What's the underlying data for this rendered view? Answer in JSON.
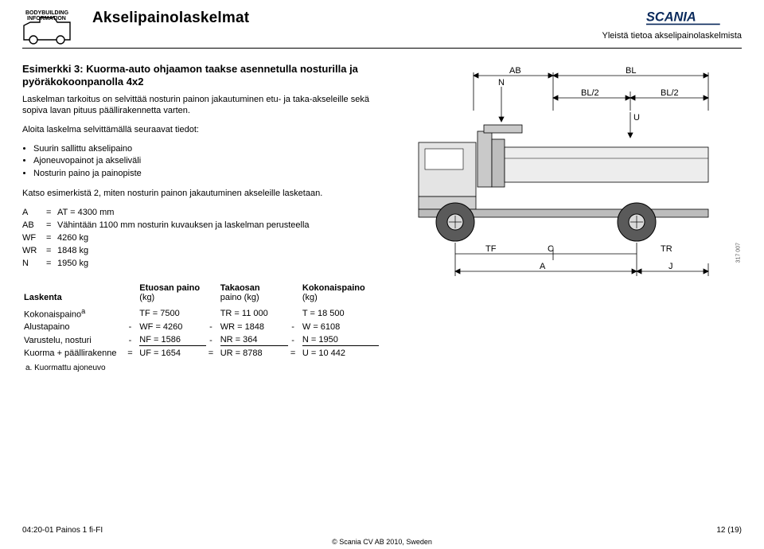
{
  "header": {
    "logo_text_top": "BODYBUILDING",
    "logo_text_bottom": "INFORMATION",
    "title": "Akselipainolaskelmat",
    "brand": "SCANIA",
    "subtitle": "Yleistä tietoa akselipainolaskelmista"
  },
  "left": {
    "example_title": "Esimerkki 3: Kuorma-auto ohjaamon taakse asennetulla nosturilla ja pyöräkokoonpanolla 4x2",
    "intro": "Laskelman tarkoitus on selvittää nosturin painon jakautuminen etu- ja taka-akseleille sekä sopiva lavan pituus päällirakennetta varten.",
    "start": "Aloita laskelma selvittämällä seuraavat tiedot:",
    "bullets": [
      "Suurin sallittu akselipaino",
      "Ajoneuvopainot ja akseliväli",
      "Nosturin paino ja painopiste"
    ],
    "see": "Katso esimerkistä 2, miten nosturin painon jakautuminen akseleille lasketaan.",
    "defs": [
      {
        "k": "A",
        "v": "AT = 4300 mm"
      },
      {
        "k": "AB",
        "v": "Vähintään 1100 mm nosturin kuvauksen ja laskelman perusteella"
      },
      {
        "k": "WF",
        "v": "4260 kg"
      },
      {
        "k": "WR",
        "v": "1848 kg"
      },
      {
        "k": "N",
        "v": "1950 kg"
      }
    ]
  },
  "figure": {
    "labels": {
      "AB": "AB",
      "BL": "BL",
      "N": "N",
      "BL2": "BL/2",
      "U": "U",
      "TF": "TF",
      "C": "C",
      "TR": "TR",
      "A": "A",
      "J": "J"
    },
    "side_note": "317 007",
    "colors": {
      "line": "#000000",
      "truck": "#b9b9b9",
      "wheel": "#5a5a5a"
    }
  },
  "calc": {
    "head": {
      "c0": "Laskenta",
      "c1": "Etuosan paino",
      "c1s": "(kg)",
      "c2": "Takaosan",
      "c2s": "paino (kg)",
      "c3": "Kokonaispaino",
      "c3s": "(kg)"
    },
    "rows": [
      {
        "label": "Kokonaispaino",
        "sup": "a",
        "op1": "",
        "v1": "TF = 7500",
        "op2": "",
        "v2": "TR = 11 000",
        "op3": "",
        "v3": "T = 18 500"
      },
      {
        "label": "Alustapaino",
        "op1": "-",
        "v1": "WF = 4260",
        "op2": "-",
        "v2": "WR = 1848",
        "op3": "-",
        "v3": "W = 6108"
      },
      {
        "label": "Varustelu, nosturi",
        "op1": "-",
        "v1": "NF = 1586",
        "op2": "-",
        "v2": "NR = 364",
        "op3": "-",
        "v3": "N = 1950",
        "underline": true
      },
      {
        "label": "Kuorma + päällirakenne",
        "op1": "=",
        "v1": "UF = 1654",
        "op2": "=",
        "v2": "UR = 8788",
        "op3": "=",
        "v3": "U = 10 442"
      }
    ],
    "footnote": "a. Kuormattu ajoneuvo"
  },
  "footer": {
    "left": "04:20-01 Painos 1 fi-FI",
    "right": "12 (19)",
    "center": "© Scania CV AB 2010, Sweden"
  }
}
